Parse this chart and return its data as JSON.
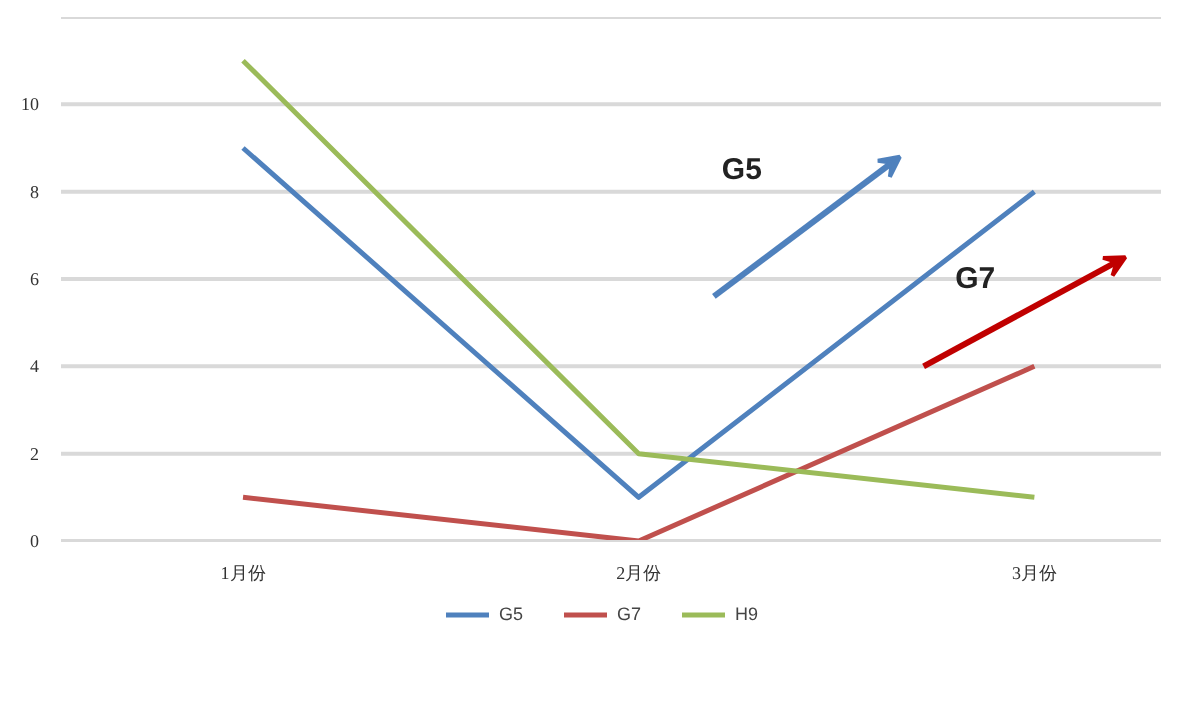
{
  "chart_data": {
    "type": "line",
    "categories": [
      "1月份",
      "2月份",
      "3月份"
    ],
    "series": [
      {
        "name": "G5",
        "color": "#4f81bd",
        "values": [
          9,
          1,
          8
        ]
      },
      {
        "name": "G7",
        "color": "#c0504d",
        "values": [
          1,
          0,
          4
        ]
      },
      {
        "name": "H9",
        "color": "#9bbb59",
        "values": [
          11,
          2,
          1
        ]
      }
    ],
    "ylim": [
      0,
      12
    ],
    "yticks": [
      0,
      2,
      4,
      6,
      8,
      10,
      {
        "value": 12,
        "label": null
      }
    ],
    "grid": "y",
    "legend": "bottom",
    "marker": "none",
    "line_style": "solid",
    "annotations": [
      "G5",
      "G7"
    ]
  }
}
